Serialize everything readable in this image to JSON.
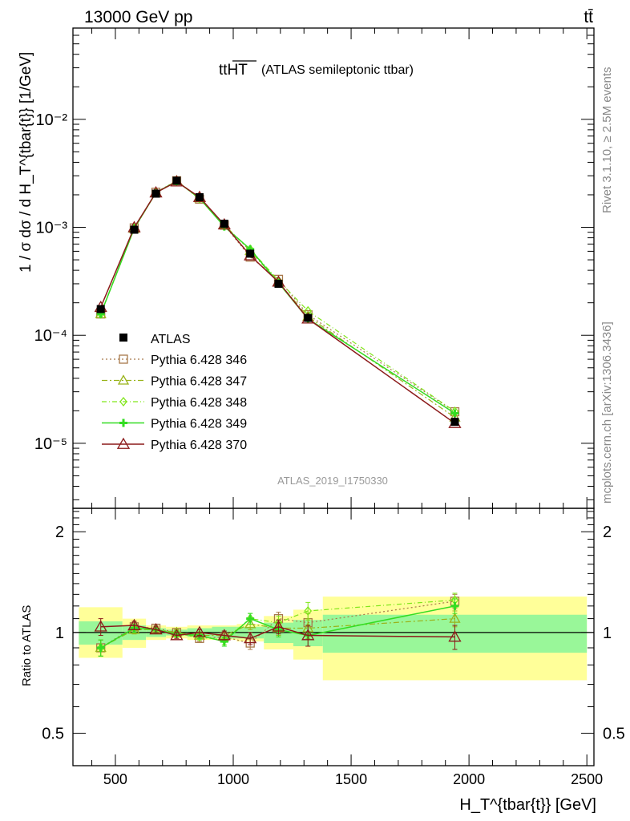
{
  "header": {
    "energy_label": "13000 GeV pp",
    "process_label": "tt̄",
    "title_main": "ttHT",
    "title_sub": "(ATLAS semileptonic ttbar)",
    "analysis_id": "ATLAS_2019_I1750330",
    "side_rivet": "Rivet 3.1.10, ≥ 2.5M events",
    "side_mcplots": "mcplots.cern.ch [arXiv:1306.3436]"
  },
  "axes": {
    "ylabel_main": "1 / σ dσ / d H_T^{tbar{t}} [1/GeV]",
    "ylabel_ratio": "Ratio to ATLAS",
    "xlabel": "H_T^{tbar{t}} [GeV]",
    "x_ticks": [
      "500",
      "1000",
      "1500",
      "2000",
      "2500"
    ],
    "main_y_ticks": [
      "10⁻⁵",
      "10⁻⁴",
      "10⁻³",
      "10⁻²"
    ],
    "ratio_y_ticks": [
      "0.5",
      "1",
      "2"
    ]
  },
  "legend": {
    "data_label": "ATLAS",
    "series_labels": [
      "Pythia 6.428 346",
      "Pythia 6.428 347",
      "Pythia 6.428 348",
      "Pythia 6.428 349",
      "Pythia 6.428 370"
    ]
  },
  "colors": {
    "data": "#000000",
    "s346": "#a8784a",
    "s347": "#99b31a",
    "s348": "#80e61a",
    "s349": "#33dd22",
    "s370": "#8b1a1a",
    "band_inner": "#99f799",
    "band_outer": "#ffff99"
  },
  "chart_data": {
    "type": "scatter",
    "x_scale": "linear",
    "main_y_scale": "log",
    "xlim": [
      320,
      2530
    ],
    "main_ylim": [
      2.5e-06,
      0.07
    ],
    "ratio_ylim": [
      0.4,
      2.35
    ],
    "bins": [
      [
        345,
        530
      ],
      [
        530,
        630
      ],
      [
        630,
        715
      ],
      [
        715,
        805
      ],
      [
        805,
        910
      ],
      [
        910,
        1015
      ],
      [
        1015,
        1130
      ],
      [
        1130,
        1255
      ],
      [
        1255,
        1380
      ],
      [
        1380,
        2500
      ]
    ],
    "x": [
      438,
      580,
      672,
      760,
      857,
      962,
      1072,
      1192,
      1317,
      1940
    ],
    "data": [
      0.000175,
      0.00095,
      0.00205,
      0.0027,
      0.0019,
      0.00108,
      0.00057,
      0.0003,
      0.000145,
      1.58e-05
    ],
    "band_inner": [
      [
        0.92,
        1.08
      ],
      [
        0.95,
        1.05
      ],
      [
        0.97,
        1.03
      ],
      [
        0.98,
        1.02
      ],
      [
        0.97,
        1.03
      ],
      [
        0.96,
        1.04
      ],
      [
        0.96,
        1.04
      ],
      [
        0.93,
        1.07
      ],
      [
        0.91,
        1.09
      ],
      [
        0.87,
        1.13
      ]
    ],
    "band_outer": [
      [
        0.84,
        1.19
      ],
      [
        0.9,
        1.1
      ],
      [
        0.95,
        1.05
      ],
      [
        0.96,
        1.04
      ],
      [
        0.95,
        1.05
      ],
      [
        0.95,
        1.05
      ],
      [
        0.94,
        1.06
      ],
      [
        0.89,
        1.12
      ],
      [
        0.83,
        1.17
      ],
      [
        0.72,
        1.28
      ]
    ],
    "series": [
      {
        "name": "Pythia 6.428 346",
        "marker": "square",
        "dash": "2,3",
        "ratio": [
          0.9,
          1.04,
          1.03,
          1.0,
          0.96,
          0.97,
          0.93,
          1.1,
          1.07,
          1.24
        ],
        "ratio_err": [
          0.05,
          0.03,
          0.02,
          0.02,
          0.02,
          0.03,
          0.04,
          0.05,
          0.07,
          0.06
        ]
      },
      {
        "name": "Pythia 6.428 347",
        "marker": "triangle",
        "dash": "7,3,2,3",
        "ratio": [
          0.9,
          1.02,
          1.02,
          1.0,
          0.98,
          0.98,
          1.06,
          1.03,
          1.03,
          1.1
        ],
        "ratio_err": [
          0.05,
          0.03,
          0.02,
          0.02,
          0.02,
          0.03,
          0.04,
          0.05,
          0.07,
          0.06
        ]
      },
      {
        "name": "Pythia 6.428 348",
        "marker": "diamond",
        "dash": "6,3,1,3",
        "ratio": [
          0.9,
          1.03,
          1.02,
          0.99,
          0.97,
          0.95,
          1.1,
          1.07,
          1.16,
          1.25
        ],
        "ratio_err": [
          0.05,
          0.03,
          0.02,
          0.02,
          0.02,
          0.03,
          0.04,
          0.05,
          0.07,
          0.06
        ]
      },
      {
        "name": "Pythia 6.428 349",
        "marker": "cross",
        "dash": "",
        "ratio": [
          0.9,
          1.03,
          1.02,
          0.99,
          0.98,
          0.94,
          1.1,
          1.02,
          0.98,
          1.2
        ],
        "ratio_err": [
          0.05,
          0.03,
          0.02,
          0.02,
          0.02,
          0.03,
          0.04,
          0.05,
          0.07,
          0.06
        ]
      },
      {
        "name": "Pythia 6.428 370",
        "marker": "triangle-open",
        "dash": "",
        "ratio": [
          1.04,
          1.05,
          1.02,
          0.98,
          1.0,
          0.98,
          0.96,
          1.04,
          0.98,
          0.97
        ],
        "ratio_err": [
          0.06,
          0.03,
          0.02,
          0.02,
          0.02,
          0.03,
          0.04,
          0.05,
          0.07,
          0.08
        ]
      }
    ]
  }
}
